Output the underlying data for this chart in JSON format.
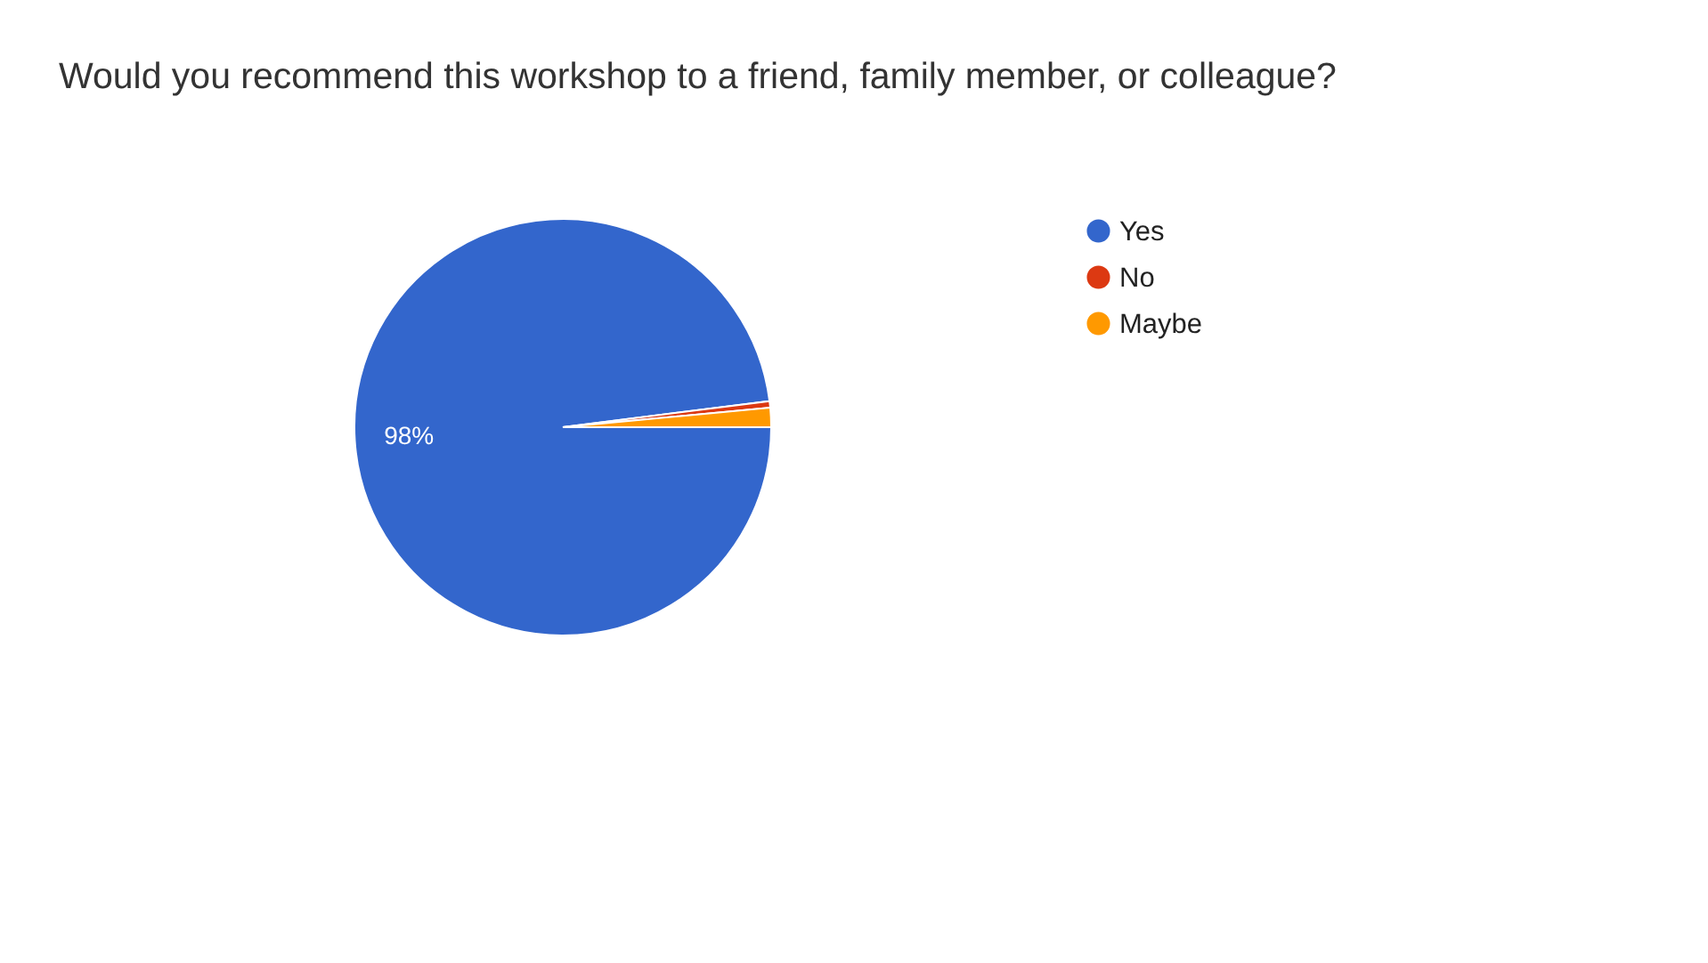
{
  "chart_data": {
    "type": "pie",
    "title": "Would you recommend this workshop to a friend, family member, or colleague?",
    "categories": [
      "Yes",
      "No",
      "Maybe"
    ],
    "values": [
      98,
      0.5,
      1.5
    ],
    "colors": [
      "#3366cc",
      "#dc3912",
      "#ff9900"
    ],
    "value_labels": [
      "98%",
      null,
      null
    ],
    "legend": "top right"
  }
}
